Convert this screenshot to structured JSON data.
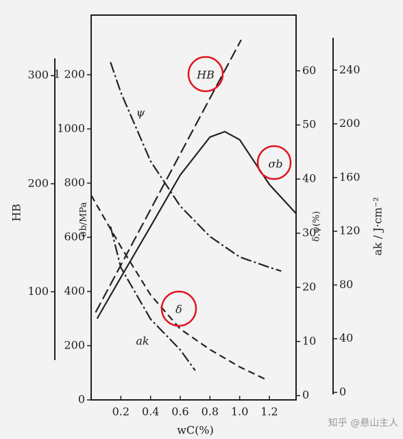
{
  "chart_data": {
    "type": "line",
    "x_label": "wC(%)",
    "xlim": [
      0,
      1.38
    ],
    "xticks": [
      0.2,
      0.4,
      0.6,
      0.8,
      {
        "value": 1.0,
        "label": "1.0"
      },
      1.2
    ],
    "y_axes": [
      {
        "label": "HB",
        "ylim": [
          0,
          356
        ],
        "yticks": [
          100,
          200,
          300
        ]
      },
      {
        "label": "σb/MPa",
        "ylim": [
          0,
          1420
        ],
        "yticks": [
          0,
          200,
          400,
          600,
          800,
          1000,
          {
            "value": 1200,
            "label": "1 200"
          }
        ]
      },
      {
        "label": "δ,ψ(%)",
        "ylim": [
          -0.8,
          70.3
        ],
        "yticks": [
          0,
          10,
          20,
          30,
          40,
          50,
          60
        ]
      },
      {
        "label": "ak / J·cm⁻²",
        "ylim": [
          -5.6,
          281
        ],
        "yticks": [
          0,
          40,
          80,
          120,
          160,
          200,
          240
        ]
      }
    ],
    "series": [
      {
        "name": "HB",
        "axis": 0,
        "style": "longdash",
        "color": "#222222",
        "x": [
          0.03,
          1.01
        ],
        "values": [
          81,
          333
        ]
      },
      {
        "name": "σb",
        "axis": 1,
        "style": "solid",
        "color": "#222222",
        "x": [
          0.04,
          0.2,
          0.4,
          0.6,
          0.8,
          0.9,
          1.0,
          1.2,
          1.38
        ],
        "values": [
          300,
          452,
          640,
          830,
          970,
          990,
          960,
          795,
          688
        ]
      },
      {
        "name": "ψ",
        "axis": 2,
        "style": "dashdot",
        "color": "#222222",
        "x": [
          0.13,
          0.2,
          0.4,
          0.6,
          0.8,
          1.0,
          1.2,
          1.28
        ],
        "values": [
          61.6,
          56,
          43.3,
          35,
          29.4,
          25.6,
          23.7,
          23.0
        ]
      },
      {
        "name": "δ",
        "axis": 2,
        "style": "dashed",
        "color": "#222222",
        "x": [
          0.0,
          0.2,
          0.4,
          0.6,
          0.8,
          1.0,
          1.19
        ],
        "values": [
          37,
          27.5,
          18.6,
          12.3,
          8.5,
          5.3,
          2.8
        ]
      },
      {
        "name": "ak",
        "axis": 3,
        "style": "dashdot",
        "color": "#222222",
        "x": [
          0.13,
          0.2,
          0.4,
          0.6,
          0.7
        ],
        "values": [
          123.6,
          93,
          54.6,
          31.7,
          16.3
        ]
      }
    ],
    "highlight_color": "#e0141e"
  },
  "watermark": "知乎 @悬山主人"
}
